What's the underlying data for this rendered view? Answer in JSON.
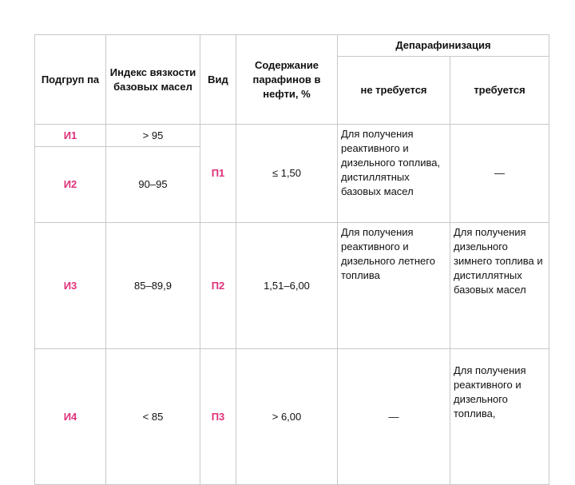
{
  "header": {
    "subgroup": "Подгруп па",
    "index": "Индекс вязкости базовых масел",
    "kind": "Вид",
    "content": "Содержание парафинов в нефти, %",
    "dewaxing": "Депарафинизация",
    "not_required": "не требуется",
    "required": "требуется"
  },
  "rows": [
    {
      "subgroup": "И1",
      "index": "> 95"
    },
    {
      "subgroup": "И2",
      "index": "90–95"
    },
    {
      "subgroup": "И3",
      "index": "85–89,9"
    },
    {
      "subgroup": "И4",
      "index": "< 85"
    }
  ],
  "kinds": [
    {
      "kind": "П1",
      "content": "≤ 1,50",
      "not_required": "Для получения реактивного и дизельного топлива, дистиллятных базовых масел",
      "required": "—"
    },
    {
      "kind": "П2",
      "content": "1,51–6,00",
      "not_required": "Для получения реактивного и дизельного летнего топлива",
      "required": "Для получения дизельного зимнего топлива и дистиллятных базовых масел"
    },
    {
      "kind": "П3",
      "content": "> 6,00",
      "not_required": "—",
      "required": "Для получения реактивного и дизельного топлива,"
    }
  ],
  "accent_color": "#e0307a"
}
